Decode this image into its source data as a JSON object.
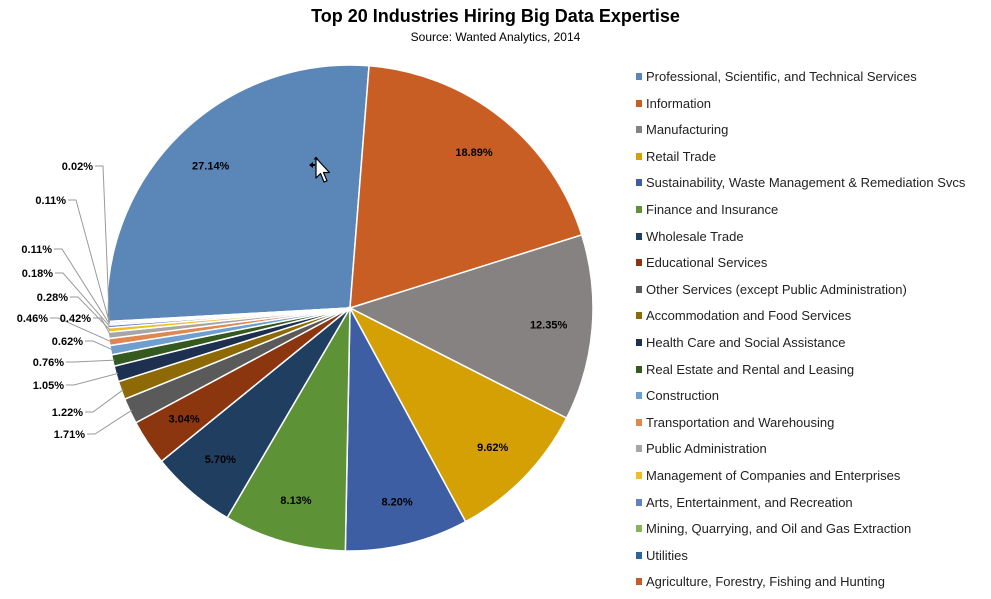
{
  "chart_data": {
    "type": "pie",
    "title": "Top 20 Industries Hiring Big Data Expertise",
    "subtitle": "Source: Wanted Analytics, 2014",
    "legend_position": "right",
    "slices": [
      {
        "name": "Professional, Scientific, and Technical Services",
        "value": 27.14,
        "label": "27.14%",
        "color": "#5B86B8"
      },
      {
        "name": "Information",
        "value": 18.89,
        "label": "18.89%",
        "color": "#C85E24"
      },
      {
        "name": "Manufacturing",
        "value": 12.35,
        "label": "12.35%",
        "color": "#878282"
      },
      {
        "name": "Retail Trade",
        "value": 9.62,
        "label": "9.62%",
        "color": "#D4A004"
      },
      {
        "name": "Sustainability, Waste Management & Remediation Svcs",
        "value": 8.2,
        "label": "8.20%",
        "color": "#3D5EA2"
      },
      {
        "name": "Finance and Insurance",
        "value": 8.13,
        "label": "8.13%",
        "color": "#5E9236"
      },
      {
        "name": "Wholesale Trade",
        "value": 5.7,
        "label": "5.70%",
        "color": "#203E60"
      },
      {
        "name": "Educational Services",
        "value": 3.04,
        "label": "3.04%",
        "color": "#8C3610"
      },
      {
        "name": "Other Services (except Public Administration)",
        "value": 1.71,
        "label": "1.71%",
        "color": "#5A5A5A"
      },
      {
        "name": "Accommodation and Food Services",
        "value": 1.22,
        "label": "1.22%",
        "color": "#8E6A06"
      },
      {
        "name": "Health Care and Social Assistance",
        "value": 1.05,
        "label": "1.05%",
        "color": "#1D3050"
      },
      {
        "name": "Real Estate and Rental and Leasing",
        "value": 0.76,
        "label": "0.76%",
        "color": "#355A20"
      },
      {
        "name": "Construction",
        "value": 0.62,
        "label": "0.62%",
        "color": "#6E9FCE"
      },
      {
        "name": "Transportation and Warehousing",
        "value": 0.46,
        "label": "0.46%",
        "color": "#E08650"
      },
      {
        "name": "Public Administration",
        "value": 0.42,
        "label": "0.42%",
        "color": "#A6A6A6"
      },
      {
        "name": "Management of Companies and Enterprises",
        "value": 0.28,
        "label": "0.28%",
        "color": "#EEBE28"
      },
      {
        "name": "Arts, Entertainment, and Recreation",
        "value": 0.18,
        "label": "0.18%",
        "color": "#6082C6"
      },
      {
        "name": "Mining, Quarrying, and Oil and Gas Extraction",
        "value": 0.11,
        "label": "0.11%",
        "color": "#84B557"
      },
      {
        "name": "Utilities",
        "value": 0.11,
        "label": "0.11%",
        "color": "#2E6496"
      },
      {
        "name": "Agriculture, Forestry, Fishing and Hunting",
        "value": 0.02,
        "label": "0.02%",
        "color": "#C75A2A"
      }
    ]
  }
}
